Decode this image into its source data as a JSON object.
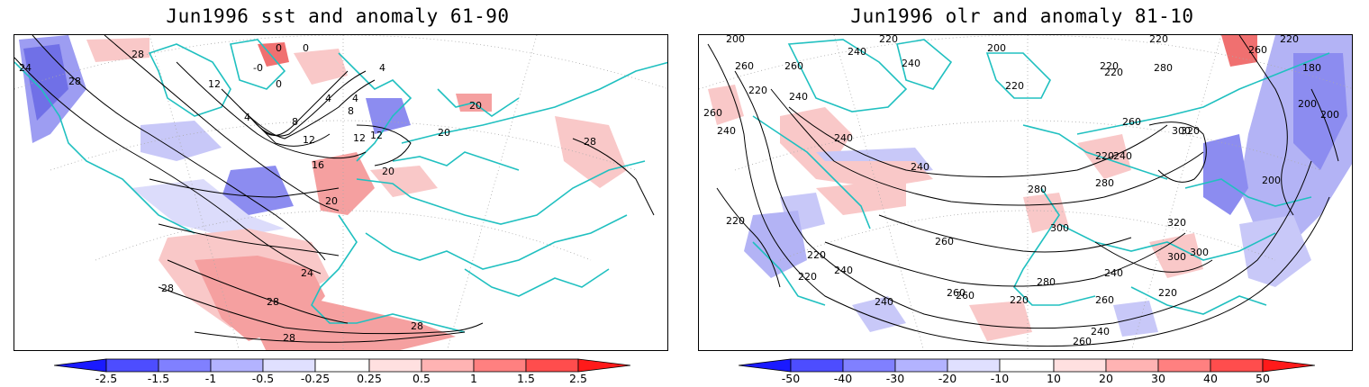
{
  "panels": [
    {
      "title": "Jun1996 sst and anomaly 61-90",
      "contour_labels": [
        "24",
        "28",
        "28",
        "0",
        "0",
        "-0",
        "0",
        "4",
        "4",
        "4",
        "12",
        "4",
        "8",
        "8",
        "12",
        "12",
        "12",
        "16",
        "20",
        "20",
        "20",
        "20",
        "28",
        "24",
        "28",
        "28",
        "28",
        "28"
      ],
      "colorbar": {
        "ticks": [
          "-2.5",
          "-1.5",
          "-1",
          "-0.5",
          "-0.25",
          "0.25",
          "0.5",
          "1",
          "1.5",
          "2.5"
        ],
        "colors": [
          "#1a1aff",
          "#4d4dff",
          "#8080ff",
          "#b3b3ff",
          "#e0e0ff",
          "#ffffff",
          "#ffe0e0",
          "#ffb3b3",
          "#ff8080",
          "#ff4d4d",
          "#ff1a1a"
        ]
      }
    },
    {
      "title": "Jun1996 olr and anomaly 81-10",
      "contour_labels": [
        "200",
        "200",
        "220",
        "220",
        "240",
        "260",
        "240",
        "260",
        "260",
        "220",
        "180",
        "200",
        "200",
        "220",
        "240",
        "260",
        "240",
        "220",
        "300",
        "300",
        "320",
        "280",
        "260",
        "280",
        "240",
        "240",
        "220",
        "220",
        "200",
        "220",
        "260",
        "280",
        "300",
        "300",
        "320",
        "240",
        "220",
        "240",
        "260",
        "280",
        "220",
        "220",
        "240",
        "220",
        "260",
        "240",
        "260",
        "220",
        "240",
        "260"
      ],
      "colorbar": {
        "ticks": [
          "-50",
          "-40",
          "-30",
          "-20",
          "-10",
          "10",
          "20",
          "30",
          "40",
          "50"
        ],
        "colors": [
          "#1a1aff",
          "#4d4dff",
          "#8080ff",
          "#b3b3ff",
          "#e0e0ff",
          "#ffffff",
          "#ffe0e0",
          "#ffb3b3",
          "#ff8080",
          "#ff4d4d",
          "#ff1a1a"
        ]
      }
    }
  ],
  "style": {
    "coast_color": "#20c0c0",
    "contour_color": "#000000",
    "neg_color": "#8c8cf0",
    "pos_color": "#f5a0a0"
  }
}
